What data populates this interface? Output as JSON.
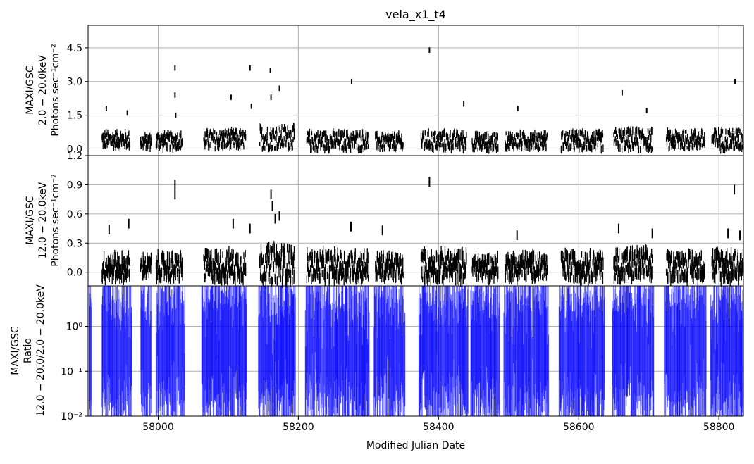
{
  "chart_data": [
    {
      "type": "scatter",
      "title": "vela_x1_t4",
      "ylabel_lines": [
        "MAXI/GSC",
        "2.0 − 20.0keV",
        "Photons sec⁻¹cm⁻²"
      ],
      "xlim": [
        57900,
        58835
      ],
      "ylim": [
        -0.3,
        5.5
      ],
      "yticks": [
        0.0,
        1.5,
        3.0,
        4.5
      ],
      "ytick_labels": [
        "0.0",
        "1.5",
        "3.0",
        "4.5"
      ],
      "grid": true,
      "color": "#000000",
      "segments": [
        {
          "x": [
            57920,
            57960
          ],
          "baseline": 0.4,
          "amp": 0.35
        },
        {
          "x": [
            57975,
            57990
          ],
          "baseline": 0.3,
          "amp": 0.3
        },
        {
          "x": [
            57997,
            58035
          ],
          "baseline": 0.35,
          "amp": 0.35
        },
        {
          "x": [
            58065,
            58125
          ],
          "baseline": 0.4,
          "amp": 0.4
        },
        {
          "x": [
            58145,
            58195
          ],
          "baseline": 0.5,
          "amp": 0.5
        },
        {
          "x": [
            58212,
            58300
          ],
          "baseline": 0.35,
          "amp": 0.4
        },
        {
          "x": [
            58310,
            58350
          ],
          "baseline": 0.3,
          "amp": 0.35
        },
        {
          "x": [
            58375,
            58440
          ],
          "baseline": 0.35,
          "amp": 0.4
        },
        {
          "x": [
            58448,
            58485
          ],
          "baseline": 0.3,
          "amp": 0.35
        },
        {
          "x": [
            58495,
            58555
          ],
          "baseline": 0.35,
          "amp": 0.35
        },
        {
          "x": [
            58575,
            58635
          ],
          "baseline": 0.35,
          "amp": 0.4
        },
        {
          "x": [
            58650,
            58705
          ],
          "baseline": 0.4,
          "amp": 0.45
        },
        {
          "x": [
            58725,
            58780
          ],
          "baseline": 0.4,
          "amp": 0.4
        },
        {
          "x": [
            58790,
            58835
          ],
          "baseline": 0.4,
          "amp": 0.45
        }
      ],
      "outliers": [
        {
          "x": 57926,
          "y": 1.8
        },
        {
          "x": 57956,
          "y": 1.6
        },
        {
          "x": 58024,
          "y": 3.6
        },
        {
          "x": 58024,
          "y": 2.4
        },
        {
          "x": 58025,
          "y": 1.5
        },
        {
          "x": 58104,
          "y": 2.3
        },
        {
          "x": 58131,
          "y": 3.6
        },
        {
          "x": 58133,
          "y": 1.9
        },
        {
          "x": 58160,
          "y": 3.5
        },
        {
          "x": 58161,
          "y": 2.3
        },
        {
          "x": 58173,
          "y": 2.7
        },
        {
          "x": 58276,
          "y": 3.0
        },
        {
          "x": 58387,
          "y": 4.4
        },
        {
          "x": 58436,
          "y": 2.0
        },
        {
          "x": 58513,
          "y": 1.8
        },
        {
          "x": 58662,
          "y": 2.5
        },
        {
          "x": 58697,
          "y": 1.7
        },
        {
          "x": 58823,
          "y": 3.0
        }
      ]
    },
    {
      "type": "scatter",
      "title": "",
      "ylabel_lines": [
        "MAXI/GSC",
        "12.0 − 20.0keV",
        "Photons sec⁻¹cm⁻²"
      ],
      "xlim": [
        57900,
        58835
      ],
      "ylim": [
        -0.14,
        1.2
      ],
      "yticks": [
        0.0,
        0.3,
        0.6,
        0.9,
        1.2
      ],
      "ytick_labels": [
        "0.0",
        "0.3",
        "0.6",
        "0.9",
        "1.2"
      ],
      "grid": true,
      "color": "#000000",
      "segments": [
        {
          "x": [
            57920,
            57960
          ],
          "baseline": 0.05,
          "amp": 0.12
        },
        {
          "x": [
            57975,
            57990
          ],
          "baseline": 0.05,
          "amp": 0.1
        },
        {
          "x": [
            57997,
            58035
          ],
          "baseline": 0.05,
          "amp": 0.12
        },
        {
          "x": [
            58065,
            58125
          ],
          "baseline": 0.06,
          "amp": 0.14
        },
        {
          "x": [
            58145,
            58195
          ],
          "baseline": 0.08,
          "amp": 0.18
        },
        {
          "x": [
            58212,
            58300
          ],
          "baseline": 0.06,
          "amp": 0.14
        },
        {
          "x": [
            58310,
            58350
          ],
          "baseline": 0.05,
          "amp": 0.12
        },
        {
          "x": [
            58375,
            58440
          ],
          "baseline": 0.06,
          "amp": 0.14
        },
        {
          "x": [
            58448,
            58485
          ],
          "baseline": 0.05,
          "amp": 0.11
        },
        {
          "x": [
            58495,
            58555
          ],
          "baseline": 0.06,
          "amp": 0.12
        },
        {
          "x": [
            58575,
            58635
          ],
          "baseline": 0.06,
          "amp": 0.13
        },
        {
          "x": [
            58650,
            58705
          ],
          "baseline": 0.07,
          "amp": 0.15
        },
        {
          "x": [
            58725,
            58780
          ],
          "baseline": 0.06,
          "amp": 0.13
        },
        {
          "x": [
            58790,
            58835
          ],
          "baseline": 0.07,
          "amp": 0.15
        }
      ],
      "outliers": [
        {
          "x": 57930,
          "y": 0.44
        },
        {
          "x": 57958,
          "y": 0.5
        },
        {
          "x": 58024,
          "y": 0.9
        },
        {
          "x": 58024,
          "y": 0.8
        },
        {
          "x": 58107,
          "y": 0.5
        },
        {
          "x": 58131,
          "y": 0.45
        },
        {
          "x": 58161,
          "y": 0.8
        },
        {
          "x": 58163,
          "y": 0.68
        },
        {
          "x": 58167,
          "y": 0.55
        },
        {
          "x": 58173,
          "y": 0.58
        },
        {
          "x": 58275,
          "y": 0.47
        },
        {
          "x": 58320,
          "y": 0.43
        },
        {
          "x": 58387,
          "y": 0.93
        },
        {
          "x": 58512,
          "y": 0.38
        },
        {
          "x": 58657,
          "y": 0.45
        },
        {
          "x": 58705,
          "y": 0.4
        },
        {
          "x": 58813,
          "y": 0.4
        },
        {
          "x": 58822,
          "y": 0.85
        },
        {
          "x": 58830,
          "y": 0.38
        }
      ]
    },
    {
      "type": "line",
      "title": "",
      "ylabel_lines": [
        "MAXI/GSC",
        "Ratio",
        "12.0 − 20.0/2.0 − 20.0keV"
      ],
      "xlabel": "Modified Julian Date",
      "xlim": [
        57900,
        58835
      ],
      "xticks": [
        58000,
        58200,
        58400,
        58600,
        58800
      ],
      "xtick_labels": [
        "58000",
        "58200",
        "58400",
        "58600",
        "58800"
      ],
      "yscale": "log",
      "ylim": [
        0.01,
        8
      ],
      "yticks": [
        0.01,
        0.1,
        1.0
      ],
      "ytick_labels": [
        "10⁻²",
        "10⁻¹",
        "10⁰"
      ],
      "grid": true,
      "color": "#0000ff",
      "segments": [
        {
          "x": [
            57902,
            57905
          ]
        },
        {
          "x": [
            57920,
            57962
          ]
        },
        {
          "x": [
            57975,
            57990
          ]
        },
        {
          "x": [
            57997,
            58038
          ]
        },
        {
          "x": [
            58062,
            58126
          ]
        },
        {
          "x": [
            58143,
            58196
          ]
        },
        {
          "x": [
            58210,
            58301
          ]
        },
        {
          "x": [
            58308,
            58352
          ]
        },
        {
          "x": [
            58372,
            58442
          ]
        },
        {
          "x": [
            58446,
            58487
          ]
        },
        {
          "x": [
            58493,
            58557
          ]
        },
        {
          "x": [
            58572,
            58637
          ]
        },
        {
          "x": [
            58648,
            58707
          ]
        },
        {
          "x": [
            58722,
            58782
          ]
        },
        {
          "x": [
            58788,
            58835
          ]
        }
      ]
    }
  ]
}
